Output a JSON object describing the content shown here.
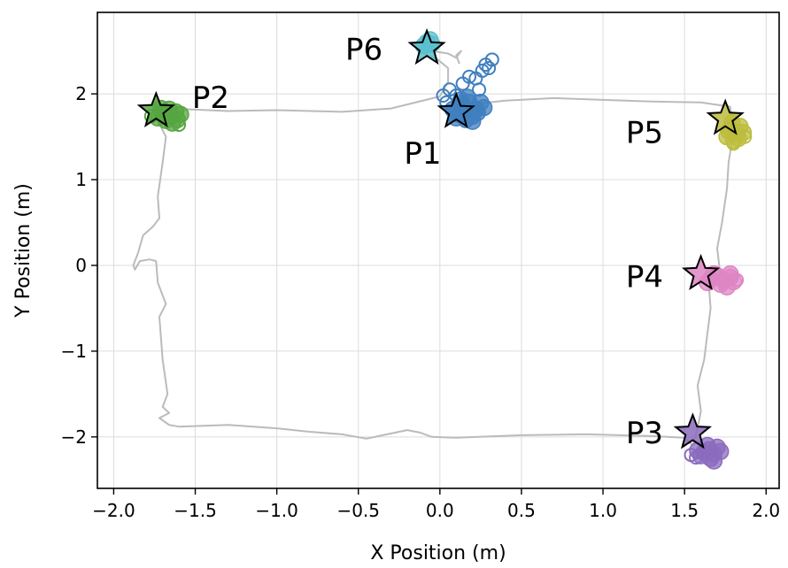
{
  "chart_data": {
    "type": "scatter",
    "title": "",
    "xlabel": "X Position (m)",
    "ylabel": "Y Position (m)",
    "xlim": [
      -2.1,
      2.08
    ],
    "ylim": [
      -2.6,
      2.95
    ],
    "xticks": [
      -2.0,
      -1.5,
      -1.0,
      -0.5,
      0.0,
      0.5,
      1.0,
      1.5,
      2.0
    ],
    "xtick_labels": [
      "−2.0",
      "−1.5",
      "−1.0",
      "−0.5",
      "0.0",
      "0.5",
      "1.0",
      "1.5",
      "2.0"
    ],
    "yticks": [
      -2,
      -1,
      0,
      1,
      2
    ],
    "ytick_labels": [
      "−2",
      "−1",
      "0",
      "1",
      "2"
    ],
    "grid": true,
    "trajectory": {
      "color": "#bbbbbb",
      "points": [
        [
          0.12,
          2.35
        ],
        [
          0.1,
          2.45
        ],
        [
          0.13,
          2.5
        ],
        [
          0.1,
          2.42
        ],
        [
          0.05,
          2.47
        ],
        [
          -0.05,
          2.5
        ],
        [
          -0.1,
          2.47
        ],
        [
          -0.02,
          2.41
        ],
        [
          0.05,
          2.3
        ],
        [
          0.05,
          2.14
        ],
        [
          0.0,
          1.97
        ],
        [
          -0.3,
          1.83
        ],
        [
          -0.6,
          1.79
        ],
        [
          -1.0,
          1.81
        ],
        [
          -1.3,
          1.8
        ],
        [
          -1.55,
          1.82
        ],
        [
          -1.65,
          1.76
        ],
        [
          -1.72,
          1.65
        ],
        [
          -1.68,
          1.5
        ],
        [
          -1.7,
          1.2
        ],
        [
          -1.73,
          0.8
        ],
        [
          -1.72,
          0.55
        ],
        [
          -1.76,
          0.45
        ],
        [
          -1.82,
          0.35
        ],
        [
          -1.85,
          0.15
        ],
        [
          -1.88,
          0.0
        ],
        [
          -1.87,
          -0.05
        ],
        [
          -1.84,
          0.05
        ],
        [
          -1.78,
          0.07
        ],
        [
          -1.74,
          0.05
        ],
        [
          -1.73,
          -0.2
        ],
        [
          -1.68,
          -0.45
        ],
        [
          -1.72,
          -0.6
        ],
        [
          -1.7,
          -1.1
        ],
        [
          -1.67,
          -1.5
        ],
        [
          -1.7,
          -1.65
        ],
        [
          -1.66,
          -1.72
        ],
        [
          -1.72,
          -1.78
        ],
        [
          -1.66,
          -1.86
        ],
        [
          -1.6,
          -1.88
        ],
        [
          -1.3,
          -1.86
        ],
        [
          -1.0,
          -1.9
        ],
        [
          -0.8,
          -1.94
        ],
        [
          -0.6,
          -1.97
        ],
        [
          -0.45,
          -2.02
        ],
        [
          -0.35,
          -1.98
        ],
        [
          -0.2,
          -1.92
        ],
        [
          -0.12,
          -1.95
        ],
        [
          -0.05,
          -2.0
        ],
        [
          0.1,
          -2.01
        ],
        [
          0.5,
          -1.98
        ],
        [
          0.9,
          -1.97
        ],
        [
          1.3,
          -1.99
        ],
        [
          1.5,
          -2.01
        ],
        [
          1.55,
          -2.1
        ],
        [
          1.58,
          -1.9
        ],
        [
          1.6,
          -1.7
        ],
        [
          1.58,
          -1.4
        ],
        [
          1.62,
          -1.1
        ],
        [
          1.64,
          -0.8
        ],
        [
          1.66,
          -0.5
        ],
        [
          1.65,
          -0.25
        ],
        [
          1.62,
          -0.1
        ],
        [
          1.68,
          -0.15
        ],
        [
          1.72,
          -0.12
        ],
        [
          1.7,
          0.2
        ],
        [
          1.73,
          0.5
        ],
        [
          1.76,
          0.9
        ],
        [
          1.77,
          1.2
        ],
        [
          1.8,
          1.55
        ],
        [
          1.78,
          1.85
        ],
        [
          1.6,
          1.9
        ],
        [
          1.3,
          1.91
        ],
        [
          1.0,
          1.93
        ],
        [
          0.7,
          1.95
        ],
        [
          0.4,
          1.92
        ],
        [
          0.2,
          1.88
        ]
      ]
    },
    "series": [
      {
        "name": "P1",
        "color": "#3f7fbf",
        "star": [
          0.1,
          1.79
        ],
        "label_pos": [
          -0.22,
          1.31
        ],
        "hollow_ring": false,
        "samples": [
          [
            0.18,
            1.9
          ],
          [
            0.22,
            1.82
          ],
          [
            0.12,
            1.76
          ],
          [
            0.2,
            1.74
          ],
          [
            0.25,
            1.9
          ],
          [
            0.14,
            1.86
          ],
          [
            0.1,
            1.72
          ],
          [
            0.17,
            1.96
          ],
          [
            0.23,
            1.78
          ],
          [
            0.08,
            1.82
          ],
          [
            0.16,
            1.7
          ],
          [
            0.27,
            1.84
          ],
          [
            0.13,
            1.93
          ],
          [
            0.2,
            1.68
          ]
        ],
        "trail": [
          [
            0.02,
            1.98
          ],
          [
            0.06,
            2.05
          ],
          [
            0.14,
            2.12
          ],
          [
            0.22,
            2.18
          ],
          [
            0.26,
            2.27
          ],
          [
            0.28,
            2.34
          ],
          [
            0.32,
            2.4
          ],
          [
            0.24,
            2.05
          ],
          [
            0.18,
            2.2
          ],
          [
            0.1,
            1.98
          ],
          [
            0.04,
            1.9
          ],
          [
            0.3,
            2.3
          ]
        ]
      },
      {
        "name": "P2",
        "color": "#55a640",
        "star": [
          -1.74,
          1.8
        ],
        "label_pos": [
          -1.52,
          1.96
        ],
        "samples": [
          [
            -1.7,
            1.78
          ],
          [
            -1.65,
            1.74
          ],
          [
            -1.62,
            1.79
          ],
          [
            -1.73,
            1.72
          ],
          [
            -1.66,
            1.82
          ],
          [
            -1.61,
            1.7
          ],
          [
            -1.68,
            1.69
          ],
          [
            -1.59,
            1.76
          ],
          [
            -1.71,
            1.83
          ],
          [
            -1.64,
            1.66
          ]
        ],
        "trail": [
          [
            -1.77,
            1.74
          ],
          [
            -1.6,
            1.64
          ]
        ]
      },
      {
        "name": "P3",
        "color": "#8b6bbd",
        "star": [
          1.55,
          -1.95
        ],
        "label_pos": [
          1.14,
          -1.95
        ],
        "samples": [
          [
            1.65,
            -2.15
          ],
          [
            1.68,
            -2.2
          ],
          [
            1.62,
            -2.18
          ],
          [
            1.7,
            -2.12
          ],
          [
            1.66,
            -2.25
          ],
          [
            1.6,
            -2.22
          ],
          [
            1.72,
            -2.17
          ],
          [
            1.64,
            -2.1
          ],
          [
            1.68,
            -2.28
          ],
          [
            1.58,
            -2.16
          ]
        ],
        "trail": [
          [
            1.54,
            -2.21
          ],
          [
            1.57,
            -2.24
          ]
        ]
      },
      {
        "name": "P4",
        "color": "#de85c4",
        "star": [
          1.6,
          -0.1
        ],
        "label_pos": [
          1.14,
          -0.13
        ],
        "samples": [
          [
            1.7,
            -0.12
          ],
          [
            1.74,
            -0.18
          ],
          [
            1.78,
            -0.14
          ],
          [
            1.66,
            -0.16
          ],
          [
            1.72,
            -0.22
          ],
          [
            1.8,
            -0.19
          ],
          [
            1.68,
            -0.1
          ],
          [
            1.76,
            -0.25
          ],
          [
            1.64,
            -0.2
          ],
          [
            1.78,
            -0.1
          ]
        ],
        "trail": [
          [
            1.82,
            -0.17
          ]
        ]
      },
      {
        "name": "P5",
        "color": "#bcbd3e",
        "star": [
          1.75,
          1.71
        ],
        "label_pos": [
          1.14,
          1.55
        ],
        "samples": [
          [
            1.78,
            1.6
          ],
          [
            1.82,
            1.54
          ],
          [
            1.76,
            1.5
          ],
          [
            1.84,
            1.62
          ],
          [
            1.8,
            1.46
          ],
          [
            1.86,
            1.55
          ],
          [
            1.79,
            1.66
          ],
          [
            1.83,
            1.48
          ],
          [
            1.77,
            1.57
          ]
        ],
        "trail": [
          [
            1.8,
            1.42
          ],
          [
            1.87,
            1.5
          ]
        ]
      },
      {
        "name": "P6",
        "color": "#5bbfcd",
        "star": [
          -0.08,
          2.53
        ],
        "label_pos": [
          -0.58,
          2.52
        ],
        "samples": [
          [
            -0.08,
            2.6
          ],
          [
            -0.05,
            2.58
          ],
          [
            -0.1,
            2.56
          ],
          [
            -0.06,
            2.63
          ]
        ],
        "trail": []
      }
    ]
  }
}
